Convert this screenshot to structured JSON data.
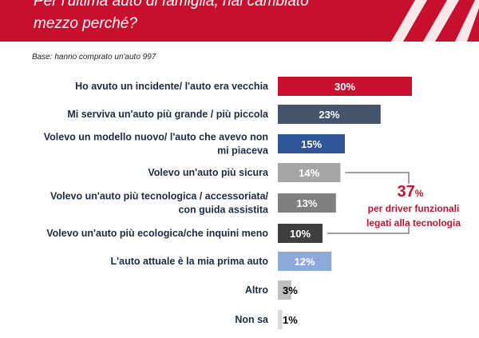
{
  "header": {
    "title_line1": "Per l'ultima auto di famiglia, hai cambiato",
    "title_line2": "mezzo perché?",
    "color": "#c8102e"
  },
  "base_note": "Base: hanno comprato un'auto  997",
  "annotation": {
    "value": "37",
    "unit": "%",
    "line1": "per driver funzionali",
    "line2": "legati alla tecnologia",
    "color": "#c8102e"
  },
  "chart_data": {
    "type": "bar",
    "orientation": "horizontal",
    "title": "Per l'ultima auto di famiglia, hai cambiato mezzo perché?",
    "xlim": [
      0,
      30
    ],
    "grid": false,
    "categories": [
      [
        "Ho avuto un incidente/ l'auto era vecchia"
      ],
      [
        "Mi serviva un'auto più grande / più piccola"
      ],
      [
        "Volevo un modello nuovo/ l'auto che avevo non",
        "mi piaceva"
      ],
      [
        "Volevo un'auto più sicura"
      ],
      [
        "Volevo un'auto più tecnologica / accessoriata/",
        "con guida assistita"
      ],
      [
        "Volevo un'auto più ecologica/che inquini meno"
      ],
      [
        "L'auto attuale è la mia prima auto"
      ],
      [
        "Altro"
      ],
      [
        "Non sa"
      ]
    ],
    "values": [
      30,
      23,
      15,
      14,
      13,
      10,
      12,
      3,
      1
    ],
    "labels": [
      "30%",
      "23%",
      "15%",
      "14%",
      "13%",
      "10%",
      "12%",
      "3%",
      "1%"
    ],
    "colors": [
      "#c8102e",
      "#44546a",
      "#2e5597",
      "#a6a6a6",
      "#7f7f7f",
      "#3f3f3f",
      "#8eaadb",
      "#bfbfbf",
      "#d9d9d9"
    ],
    "label_colors": [
      "#ffffff",
      "#ffffff",
      "#ffffff",
      "#ffffff",
      "#ffffff",
      "#ffffff",
      "#ffffff",
      "#000000",
      "#000000"
    ],
    "bracket_rows": [
      3,
      5
    ]
  }
}
